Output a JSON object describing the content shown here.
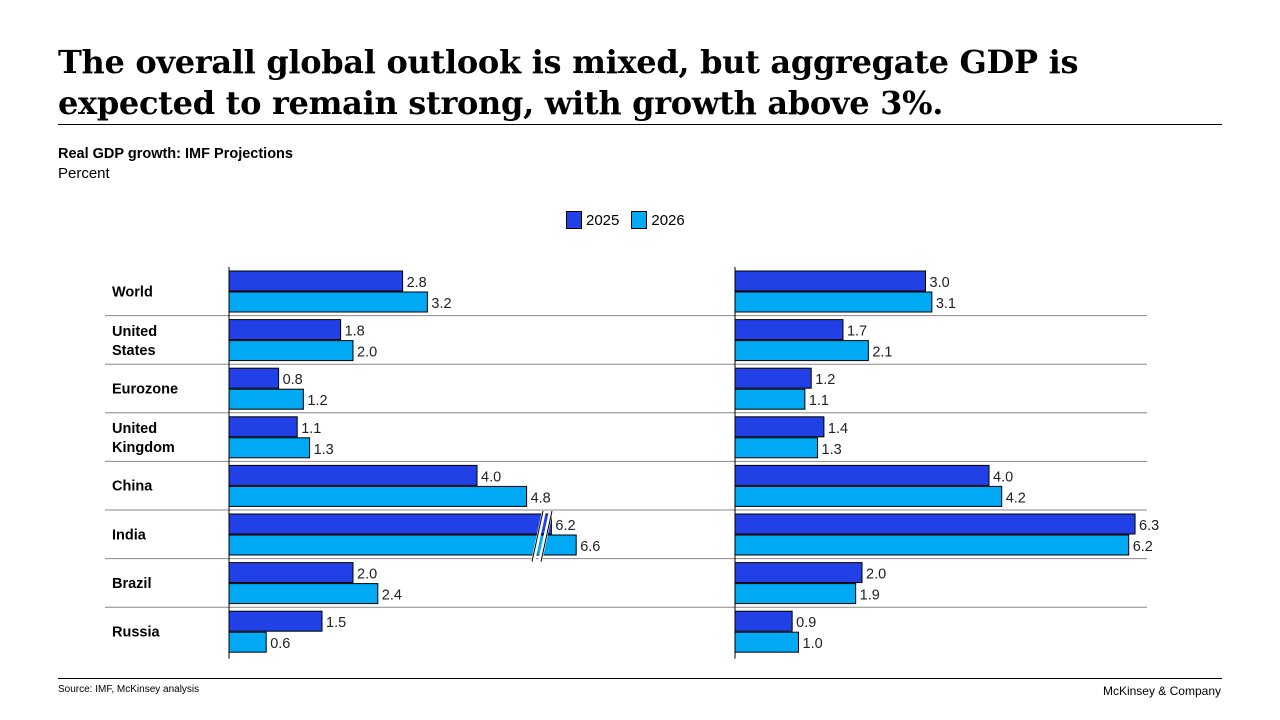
{
  "title": "The overall global outlook is mixed, but aggregate GDP is expected to remain strong, with growth above 3%.",
  "footer": {
    "source": "Source: IMF, McKinsey analysis",
    "brand": "McKinsey & Company"
  },
  "colors": {
    "s2025": "#2141E6",
    "s2026": "#00A9F4"
  },
  "chart_data": {
    "type": "bar",
    "orientation": "horizontal",
    "title": "Real GDP growth: IMF Projections",
    "unit": "Percent",
    "legend": {
      "placement": "top-center",
      "entries": [
        "2025",
        "2026"
      ]
    },
    "categories": [
      [
        "World"
      ],
      [
        "United",
        "States"
      ],
      [
        "Eurozone"
      ],
      [
        "United",
        "Kingdom"
      ],
      [
        "China"
      ],
      [
        "India"
      ],
      [
        "Brazil"
      ],
      [
        "Russia"
      ]
    ],
    "panels": [
      {
        "series": [
          {
            "name": "2025",
            "values": [
              2.8,
              1.8,
              0.8,
              1.1,
              4.0,
              6.2,
              2.0,
              1.5
            ]
          },
          {
            "name": "2026",
            "values": [
              3.2,
              2.0,
              1.2,
              1.3,
              4.8,
              6.6,
              2.4,
              0.6
            ]
          }
        ],
        "axis_break": true
      },
      {
        "series": [
          {
            "name": "2025",
            "values": [
              3.0,
              1.7,
              1.2,
              1.4,
              4.0,
              6.3,
              2.0,
              0.9
            ]
          },
          {
            "name": "2026",
            "values": [
              3.1,
              2.1,
              1.1,
              1.3,
              4.2,
              6.2,
              1.9,
              1.0
            ]
          }
        ],
        "axis_break": false
      }
    ]
  }
}
